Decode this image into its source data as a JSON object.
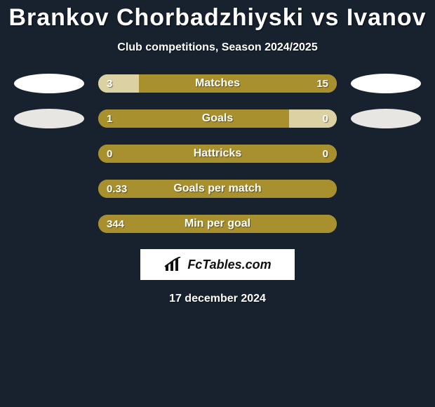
{
  "title": "Brankov Chorbadzhiyski vs Ivanov",
  "subtitle": "Club competitions, Season 2024/2025",
  "date": "17 december 2024",
  "logo_text": "FcTables.com",
  "colors": {
    "background": "#17222e",
    "ellipse_light": "#ffffff",
    "ellipse_mid": "#e8e6e3",
    "bar_primary": "#a8902e",
    "bar_secondary": "#dcd1a3",
    "text": "#ffffff"
  },
  "rows": [
    {
      "label": "Matches",
      "left_val": "3",
      "right_val": "15",
      "left_pct": 17,
      "right_pct": 83,
      "left_color": "#dcd1a3",
      "right_color": "#a8902e",
      "left_ellipse": "#ffffff",
      "right_ellipse": "#ffffff"
    },
    {
      "label": "Goals",
      "left_val": "1",
      "right_val": "0",
      "left_pct": 80,
      "right_pct": 20,
      "left_color": "#a8902e",
      "right_color": "#dcd1a3",
      "left_ellipse": "#e8e6e3",
      "right_ellipse": "#e8e6e3"
    },
    {
      "label": "Hattricks",
      "left_val": "0",
      "right_val": "0",
      "left_pct": 100,
      "right_pct": 0,
      "left_color": "#a8902e",
      "right_color": "#a8902e",
      "left_ellipse": null,
      "right_ellipse": null
    },
    {
      "label": "Goals per match",
      "left_val": "0.33",
      "right_val": "",
      "left_pct": 100,
      "right_pct": 0,
      "left_color": "#a8902e",
      "right_color": "#a8902e",
      "left_ellipse": null,
      "right_ellipse": null
    },
    {
      "label": "Min per goal",
      "left_val": "344",
      "right_val": "",
      "left_pct": 100,
      "right_pct": 0,
      "left_color": "#a8902e",
      "right_color": "#a8902e",
      "left_ellipse": null,
      "right_ellipse": null
    }
  ]
}
